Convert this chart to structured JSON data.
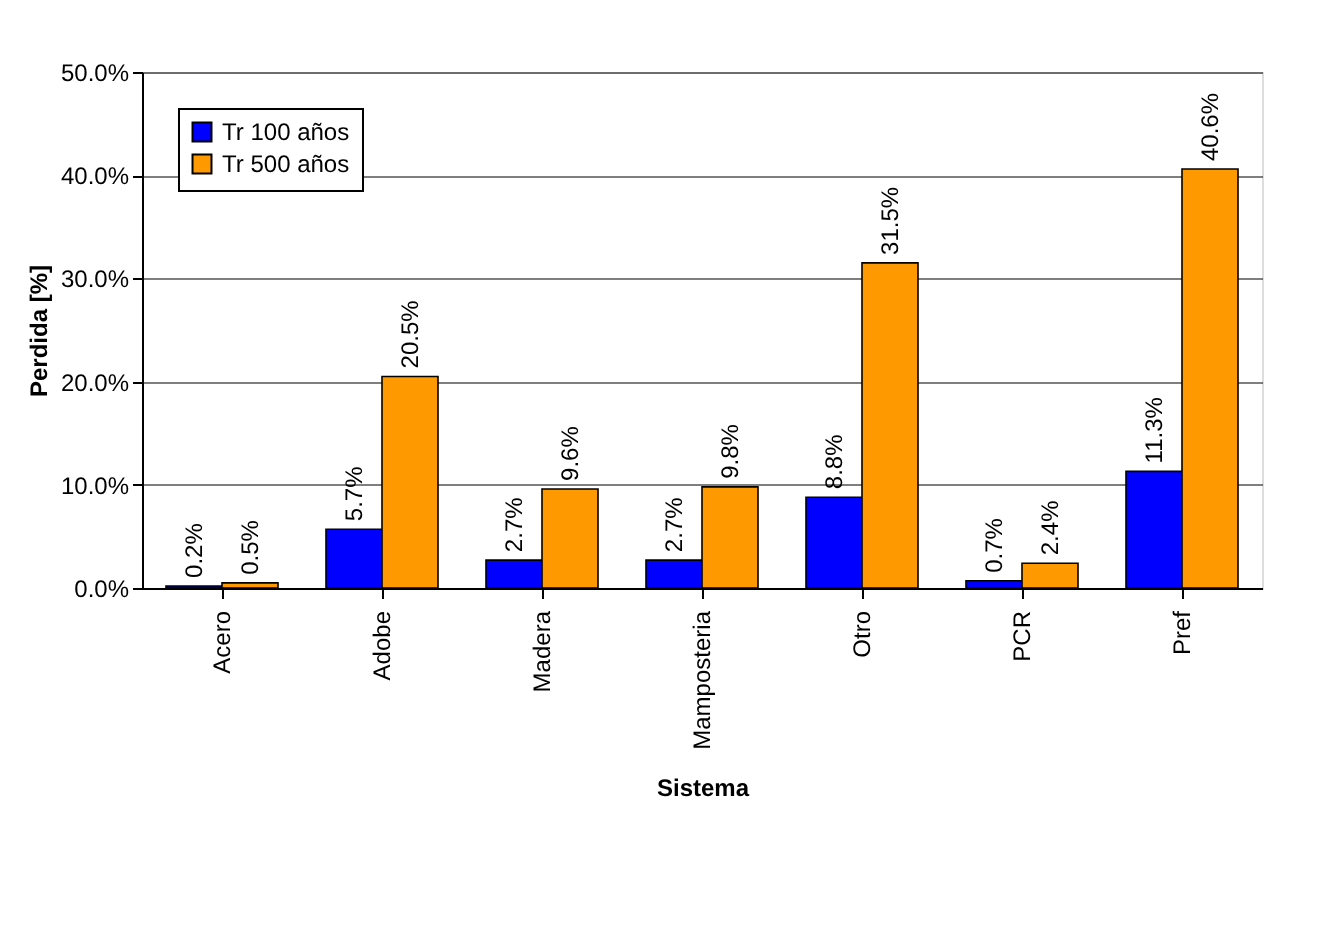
{
  "chart_data": {
    "type": "bar",
    "xlabel": "Sistema",
    "ylabel": "Perdida [%]",
    "categories": [
      "Acero",
      "Adobe",
      "Madera",
      "Mamposteria",
      "Otro",
      "PCR",
      "Pref"
    ],
    "series": [
      {
        "name": "Tr 100 años",
        "color": "#0000ff",
        "values": [
          0.2,
          5.7,
          2.7,
          2.7,
          8.8,
          0.7,
          11.3
        ],
        "value_labels": [
          "0.2%",
          "5.7%",
          "2.7%",
          "2.7%",
          "8.8%",
          "0.7%",
          "11.3%"
        ]
      },
      {
        "name": "Tr 500 años",
        "color": "#ff9900",
        "values": [
          0.5,
          20.5,
          9.6,
          9.8,
          31.5,
          2.4,
          40.6
        ],
        "value_labels": [
          "0.5%",
          "20.5%",
          "9.6%",
          "9.8%",
          "31.5%",
          "2.4%",
          "40.6%"
        ]
      }
    ],
    "ylim": [
      0,
      50
    ],
    "yticks": [
      {
        "value": 0,
        "label": "0.0%"
      },
      {
        "value": 10,
        "label": "10.0%"
      },
      {
        "value": 20,
        "label": "20.0%"
      },
      {
        "value": 30,
        "label": "30.0%"
      },
      {
        "value": 40,
        "label": "40.0%"
      },
      {
        "value": 50,
        "label": "50.0%"
      }
    ],
    "grid": "y",
    "legend": "top left"
  }
}
